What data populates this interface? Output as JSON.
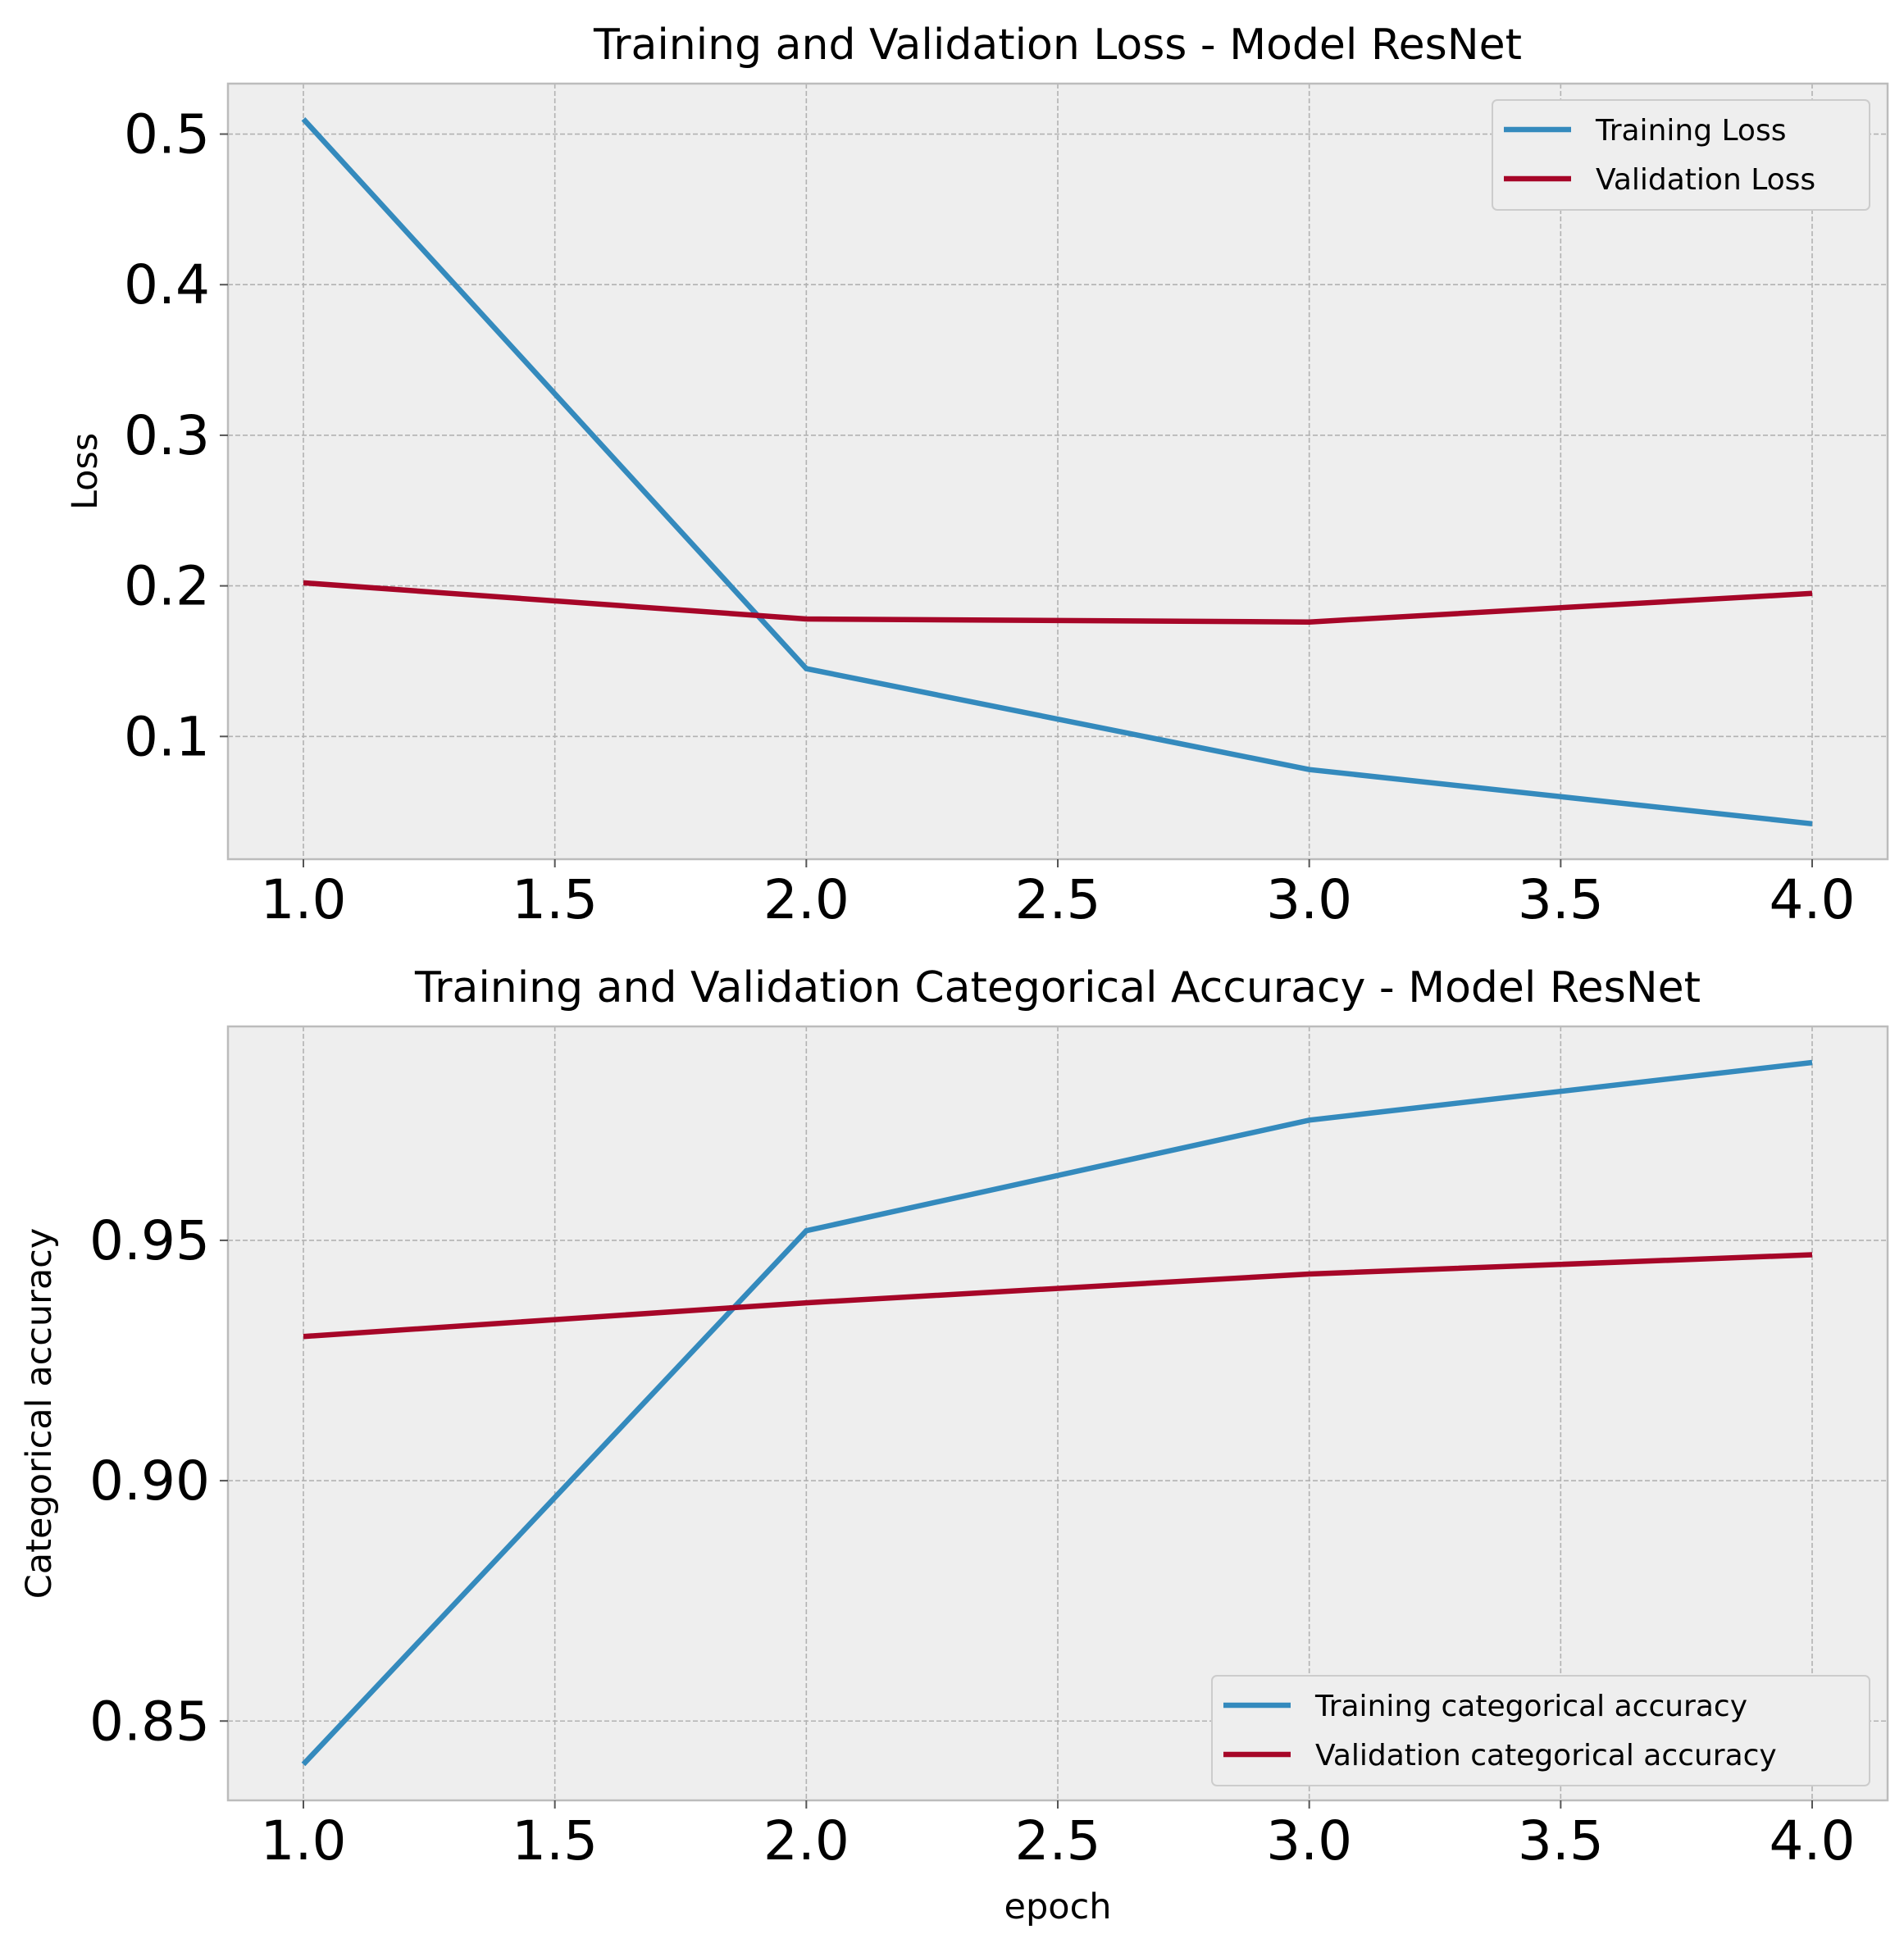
{
  "chart_data": [
    {
      "type": "line",
      "title": "Training and Validation Loss - Model ResNet",
      "xlabel": "",
      "ylabel": "Loss",
      "x": [
        1.0,
        2.0,
        3.0,
        4.0
      ],
      "series": [
        {
          "name": "Training Loss",
          "color": "#348ABD",
          "values": [
            0.51,
            0.145,
            0.078,
            0.042
          ]
        },
        {
          "name": "Validation Loss",
          "color": "#A60628",
          "values": [
            0.202,
            0.178,
            0.176,
            0.195
          ]
        }
      ],
      "xlim": [
        0.85,
        4.15
      ],
      "ylim": [
        0.0185,
        0.5335
      ],
      "xticks": [
        1.0,
        1.5,
        2.0,
        2.5,
        3.0,
        3.5,
        4.0
      ],
      "xtick_labels": [
        "1.0",
        "1.5",
        "2.0",
        "2.5",
        "3.0",
        "3.5",
        "4.0"
      ],
      "yticks": [
        0.1,
        0.2,
        0.3,
        0.4,
        0.5
      ],
      "ytick_labels": [
        "0.1",
        "0.2",
        "0.3",
        "0.4",
        "0.5"
      ],
      "grid": true,
      "legend_position": "upper right"
    },
    {
      "type": "line",
      "title": "Training and Validation Categorical Accuracy - Model ResNet",
      "xlabel": "epoch",
      "ylabel": "Categorical accuracy",
      "x": [
        1.0,
        2.0,
        3.0,
        4.0
      ],
      "series": [
        {
          "name": "Training categorical accuracy",
          "color": "#348ABD",
          "values": [
            0.841,
            0.952,
            0.975,
            0.987
          ]
        },
        {
          "name": "Validation categorical accuracy",
          "color": "#A60628",
          "values": [
            0.93,
            0.937,
            0.943,
            0.947
          ]
        }
      ],
      "xlim": [
        0.85,
        4.15
      ],
      "ylim": [
        0.8335,
        0.9945
      ],
      "xticks": [
        1.0,
        1.5,
        2.0,
        2.5,
        3.0,
        3.5,
        4.0
      ],
      "xtick_labels": [
        "1.0",
        "1.5",
        "2.0",
        "2.5",
        "3.0",
        "3.5",
        "4.0"
      ],
      "yticks": [
        0.85,
        0.9,
        0.95
      ],
      "ytick_labels": [
        "0.85",
        "0.90",
        "0.95"
      ],
      "grid": true,
      "legend_position": "lower right"
    }
  ]
}
